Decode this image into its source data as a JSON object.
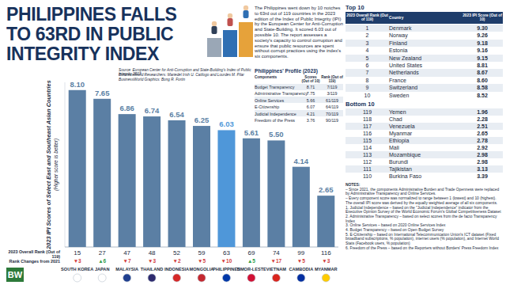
{
  "header": {
    "title": "PHILIPPINES FALLS TO 63RD IN PUBLIC INTEGRITY INDEX",
    "intro": "The Philippines went down by 10 notches to 63rd out of 119 countries in the 2023 edition of the Index of Public Integrity (IPI) by the European Center for Anti-Corruption and State-Building. It scored 6.03 out of possible 10. The report assesses a society's capacity to control corruption and ensure that public resources are spent without corrupt practices using the index's six components.",
    "source": "Source: European Center for Anti-Corruption and State-Building's Index of Public Integrity 2023",
    "researchers": "BusinessWorld Researchers: Mariedel Irish U. Catilogo and Lourdes M. Pilar",
    "graphics": "BusinessWorld Graphics: Bong R. Fortin",
    "logo": "BW"
  },
  "profile": {
    "title": "Philippines' Profile (2023)",
    "columns": [
      "Components",
      "Scores (Out of 10)",
      "Rank (Out of 119)"
    ],
    "rows": [
      [
        "Budget Transparency",
        "8.71",
        "7/119"
      ],
      [
        "Administrative Transparency",
        "7.75",
        "3/119"
      ],
      [
        "Online Services",
        "5.66",
        "61/119"
      ],
      [
        "E-Citizenship",
        "6.07",
        "64/119"
      ],
      [
        "Judicial Independence",
        "4.21",
        "70/119"
      ],
      [
        "Freedom of the Press",
        "3.76",
        "90/119"
      ]
    ]
  },
  "top10": {
    "title": "Top 10",
    "columns": [
      "2023 Overall Rank (Out of 119)",
      "Country",
      "2023 IPI Score (Out of 10)"
    ],
    "rows": [
      [
        "1",
        "Denmark",
        "9.30"
      ],
      [
        "2",
        "Norway",
        "9.26"
      ],
      [
        "3",
        "Finland",
        "9.18"
      ],
      [
        "4",
        "Estonia",
        "9.16"
      ],
      [
        "5",
        "New Zealand",
        "9.15"
      ],
      [
        "6",
        "United States",
        "8.81"
      ],
      [
        "7",
        "Netherlands",
        "8.67"
      ],
      [
        "8",
        "France",
        "8.60"
      ],
      [
        "9",
        "Switzerland",
        "8.58"
      ],
      [
        "10",
        "Sweden",
        "8.52"
      ]
    ]
  },
  "bottom10": {
    "title": "Bottom 10",
    "rows": [
      [
        "119",
        "Yemen",
        "1.96"
      ],
      [
        "118",
        "Chad",
        "2.28"
      ],
      [
        "117",
        "Venezuela",
        "2.51"
      ],
      [
        "116",
        "Myanmar",
        "2.65"
      ],
      [
        "115",
        "Ethiopia",
        "2.78"
      ],
      [
        "114",
        "Mali",
        "2.92"
      ],
      [
        "113",
        "Mozambique",
        "2.98"
      ],
      [
        "112",
        "Burundi",
        "2.98"
      ],
      [
        "111",
        "Tajikistan",
        "3.13"
      ],
      [
        "110",
        "Burkina Faso",
        "3.39"
      ]
    ]
  },
  "notes": {
    "title": "NOTES:",
    "items": [
      "– Since 2021, the components Administrative Burden and Trade Openness were replaced by Administrative Transparency and Online Services.",
      "– Every component score was normalized to range between 1 (lowest) and 10 (highest). The overall IPI score was derived by the equally weighted average of all six components.",
      "1. Judicial Independence – based on the \"Judicial Independence\" indicator from the Executive Opinion Survey of the World Economic Forum's Global Competitiveness Dataset",
      "2. Administrative Transparency – based on select scores from the de facto Transparency Index",
      "3. Online Services – based on 2020 Online Services Index",
      "4. Budget Transparency – based on Open Budget Survey",
      "5. E-Citizenship – based on International Telecommunication Union's ICT dataset (Fixed broadband subscriptions, % population), internet users (% population), and Internet World Stats (Facebook users, % population)",
      "6. Freedom of the Press – based on the Reporters without Borders' Press Freedom Index"
    ]
  },
  "chart_data": {
    "type": "bar",
    "y_label": "2023 IPI Scores of Select East and Southeast Asian Countries",
    "y_sublabel": "(Higher score is better)",
    "categories": [
      "SOUTH KOREA",
      "JAPAN",
      "MALAYSIA",
      "THAILAND",
      "INDONESIA",
      "MONGOLIA",
      "PHILIPPINES",
      "TIMOR-LESTE",
      "VIETNAM",
      "CAMBODIA",
      "MYANMAR"
    ],
    "values": [
      8.1,
      7.65,
      6.86,
      6.74,
      6.54,
      6.25,
      6.03,
      5.61,
      5.5,
      4.14,
      2.65
    ],
    "value_labels": [
      "8.10",
      "7.65",
      "6.86",
      "6.74",
      "6.54",
      "6.25",
      "6.03",
      "5.61",
      "5.50",
      "4.14",
      "2.65"
    ],
    "colors": [
      "#5b7fa4",
      "#5b7fa4",
      "#5b7fa4",
      "#5b7fa4",
      "#5b7fa4",
      "#5b7fa4",
      "#4f97d9",
      "#5b7fa4",
      "#5b7fa4",
      "#5b7fa4",
      "#5b7fa4"
    ],
    "rank_title": "2023 Overall Rank (Out of 119)",
    "ranks": [
      15,
      27,
      47,
      48,
      52,
      59,
      63,
      69,
      74,
      99,
      116
    ],
    "rank_change_title": "Rank Changes from 2021",
    "rank_changes": [
      "▼3",
      "▲6",
      "▼7",
      "▼3",
      "▼2",
      "▼5",
      "▼10",
      "▲5",
      "▼17",
      "▼5",
      "▼3"
    ],
    "ylim": [
      0,
      8.5
    ],
    "yticks": [
      0
    ],
    "data_labels": true,
    "tick_labels": "x",
    "grid": false
  }
}
